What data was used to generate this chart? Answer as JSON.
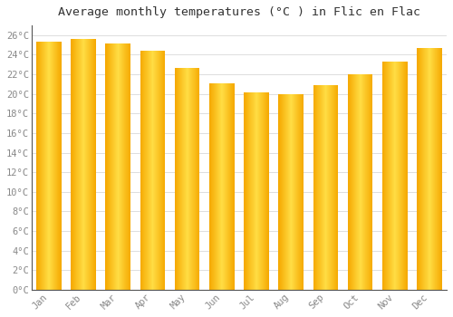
{
  "title": "Average monthly temperatures (°C ) in Flic en Flac",
  "months": [
    "Jan",
    "Feb",
    "Mar",
    "Apr",
    "May",
    "Jun",
    "Jul",
    "Aug",
    "Sep",
    "Oct",
    "Nov",
    "Dec"
  ],
  "temperatures": [
    25.3,
    25.6,
    25.2,
    24.4,
    22.7,
    21.1,
    20.2,
    20.0,
    20.9,
    22.0,
    23.3,
    24.7
  ],
  "bar_color_center": "#FFDD44",
  "bar_color_edge": "#F5A800",
  "ylim": [
    0,
    27
  ],
  "yticks": [
    0,
    2,
    4,
    6,
    8,
    10,
    12,
    14,
    16,
    18,
    20,
    22,
    24,
    26
  ],
  "ytick_labels": [
    "0°C",
    "2°C",
    "4°C",
    "6°C",
    "8°C",
    "10°C",
    "12°C",
    "14°C",
    "16°C",
    "18°C",
    "20°C",
    "22°C",
    "24°C",
    "26°C"
  ],
  "grid_color": "#dddddd",
  "background_color": "#ffffff",
  "title_fontsize": 9.5,
  "tick_fontsize": 7.5,
  "font_family": "monospace",
  "bar_width": 0.72,
  "n_grad": 80
}
